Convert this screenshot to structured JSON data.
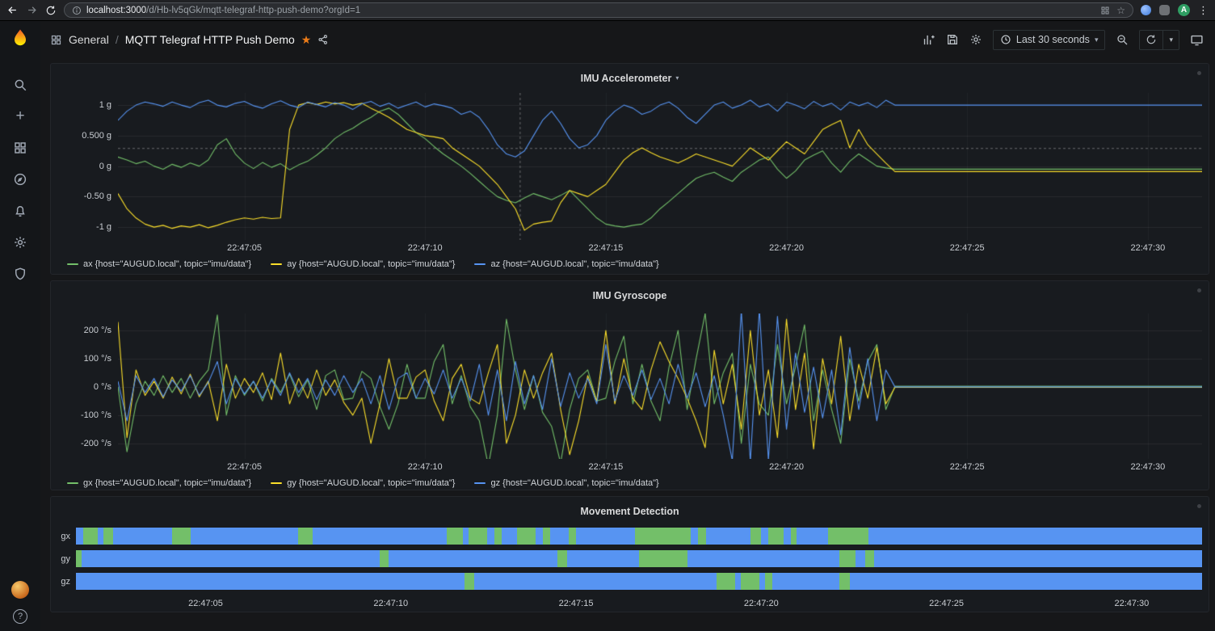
{
  "browser": {
    "url_domain": "localhost:3000",
    "url_path": "/d/Hb-lv5qGk/mqtt-telegraf-http-push-demo?orgId=1",
    "avatar_letter": "A"
  },
  "icons": {
    "star_filled": "★",
    "star_outline": "☆",
    "kebab": "⋮",
    "caret_down": "▾",
    "plus": "+",
    "question": "?"
  },
  "nav": {
    "folder": "General",
    "separator": "/",
    "title": "MQTT Telegraf HTTP Push Demo",
    "time_range": "Last 30 seconds"
  },
  "chart_data": {
    "accel": {
      "type": "line",
      "title": "IMU Accelerometer",
      "t0": 0,
      "dt": 0.25,
      "x_start": 0,
      "x_end": 30,
      "y_min": -1.21,
      "y_max": 1.2,
      "crosshair": {
        "t": 11.13,
        "v": 0.29
      },
      "y_ticks": [
        {
          "v": 1,
          "label": "1 g"
        },
        {
          "v": 0.5,
          "label": "0.500 g"
        },
        {
          "v": 0,
          "label": "0 g"
        },
        {
          "v": -0.5,
          "label": "-0.50 g"
        },
        {
          "v": -1,
          "label": "-1 g"
        }
      ],
      "x_ticks": [
        {
          "t": 3.5,
          "label": "22:47:05"
        },
        {
          "t": 8.5,
          "label": "22:47:10"
        },
        {
          "t": 13.5,
          "label": "22:47:15"
        },
        {
          "t": 18.5,
          "label": "22:47:20"
        },
        {
          "t": 23.5,
          "label": "22:47:25"
        },
        {
          "t": 28.5,
          "label": "22:47:30"
        }
      ],
      "series": [
        {
          "name": "ax",
          "color": "#73BF69",
          "legend": "ax {host=\"AUGUD.local\", topic=\"imu/data\"}",
          "values": [
            0.15,
            0.1,
            0.04,
            0.08,
            0,
            -0.05,
            0.03,
            -0.02,
            0.05,
            0,
            0.1,
            0.35,
            0.45,
            0.2,
            0.05,
            -0.04,
            0.06,
            -0.02,
            0.04,
            -0.06,
            0.02,
            0.08,
            0.18,
            0.3,
            0.45,
            0.55,
            0.62,
            0.72,
            0.8,
            0.9,
            0.95,
            0.85,
            0.7,
            0.55,
            0.45,
            0.32,
            0.2,
            0.1,
            0,
            -0.12,
            -0.25,
            -0.38,
            -0.5,
            -0.56,
            -0.6,
            -0.52,
            -0.45,
            -0.5,
            -0.55,
            -0.48,
            -0.4,
            -0.55,
            -0.7,
            -0.85,
            -0.95,
            -0.98,
            -1,
            -0.97,
            -0.95,
            -0.85,
            -0.7,
            -0.58,
            -0.45,
            -0.32,
            -0.2,
            -0.14,
            -0.1,
            -0.18,
            -0.25,
            -0.1,
            0,
            0.1,
            0.15,
            -0.05,
            -0.2,
            -0.08,
            0.1,
            0.18,
            0.25,
            0.05,
            -0.1,
            0.08,
            0.2,
            0.1,
            0,
            -0.03,
            -0.05
          ]
        },
        {
          "name": "ay",
          "color": "#FADE2A",
          "legend": "ay {host=\"AUGUD.local\", topic=\"imu/data\"}",
          "values": [
            -0.45,
            -0.7,
            -0.85,
            -0.95,
            -1,
            -0.97,
            -1.02,
            -0.98,
            -1,
            -0.96,
            -1.01,
            -0.97,
            -0.92,
            -0.88,
            -0.85,
            -0.87,
            -0.84,
            -0.86,
            -0.85,
            0.6,
            1,
            1.04,
            1.01,
            1.05,
            1.02,
            1.04,
            1,
            1.03,
            0.95,
            0.88,
            0.8,
            0.7,
            0.6,
            0.55,
            0.5,
            0.48,
            0.45,
            0.3,
            0.2,
            0.1,
            0,
            -0.15,
            -0.3,
            -0.5,
            -0.7,
            -1.05,
            -0.95,
            -0.92,
            -0.9,
            -0.6,
            -0.4,
            -0.45,
            -0.5,
            -0.4,
            -0.3,
            -0.1,
            0.1,
            0.22,
            0.3,
            0.22,
            0.15,
            0.1,
            0.05,
            0.12,
            0.2,
            0.15,
            0.1,
            0.05,
            0,
            0.15,
            0.3,
            0.2,
            0.1,
            0.25,
            0.4,
            0.3,
            0.2,
            0.4,
            0.6,
            0.68,
            0.75,
            0.3,
            0.6,
            0.35,
            0.2,
            0.05,
            -0.09
          ]
        },
        {
          "name": "az",
          "color": "#5794F2",
          "legend": "az {host=\"AUGUD.local\", topic=\"imu/data\"}",
          "values": [
            0.75,
            0.9,
            1,
            1.05,
            1.02,
            0.98,
            1.05,
            1,
            0.96,
            1.04,
            1.08,
            1,
            0.97,
            1.03,
            1.06,
            0.99,
            0.95,
            1.02,
            1.07,
            1,
            0.96,
            1.05,
            1.01,
            0.97,
            1.04,
            1,
            0.93,
            1.02,
            1.06,
            0.98,
            1.03,
            0.95,
            1,
            1.05,
            0.97,
            1.02,
            0.99,
            0.95,
            0.85,
            0.9,
            0.8,
            0.6,
            0.35,
            0.2,
            0.15,
            0.25,
            0.5,
            0.75,
            0.9,
            0.7,
            0.45,
            0.3,
            0.35,
            0.5,
            0.75,
            0.9,
            1,
            0.95,
            0.85,
            0.9,
            1,
            1.05,
            0.95,
            0.8,
            0.7,
            0.85,
            1,
            1.05,
            0.95,
            1,
            1.08,
            0.97,
            1.02,
            0.9,
            1.05,
            1,
            0.94,
            1.06,
            0.98,
            1.03,
            0.92,
            1.05,
            0.99,
            1.04,
            0.96,
            1.08,
            1
          ]
        }
      ]
    },
    "gyro": {
      "type": "line",
      "title": "IMU Gyroscope",
      "t0": 0,
      "dt": 0.25,
      "x_start": 0,
      "x_end": 30,
      "y_min": -255,
      "y_max": 260,
      "y_ticks": [
        {
          "v": 200,
          "label": "200 °/s"
        },
        {
          "v": 100,
          "label": "100 °/s"
        },
        {
          "v": 0,
          "label": "0 °/s"
        },
        {
          "v": -100,
          "label": "-100 °/s"
        },
        {
          "v": -200,
          "label": "-200 °/s"
        }
      ],
      "x_ticks": [
        {
          "t": 3.5,
          "label": "22:47:05"
        },
        {
          "t": 8.5,
          "label": "22:47:10"
        },
        {
          "t": 13.5,
          "label": "22:47:15"
        },
        {
          "t": 18.5,
          "label": "22:47:20"
        },
        {
          "t": 23.5,
          "label": "22:47:25"
        },
        {
          "t": 28.5,
          "label": "22:47:30"
        }
      ],
      "series": [
        {
          "name": "gx",
          "color": "#73BF69",
          "legend": "gx {host=\"AUGUD.local\", topic=\"imu/data\"}",
          "values": [
            0,
            -230,
            -60,
            20,
            -30,
            40,
            -20,
            30,
            -40,
            20,
            60,
            255,
            -100,
            40,
            -30,
            20,
            -50,
            30,
            -20,
            45,
            -35,
            25,
            -80,
            40,
            60,
            -45,
            -40,
            55,
            30,
            -70,
            -150,
            -60,
            80,
            -40,
            -40,
            90,
            150,
            -60,
            40,
            -70,
            -120,
            -280,
            -100,
            240,
            60,
            -80,
            40,
            -90,
            -140,
            -270,
            -80,
            30,
            60,
            -50,
            -40,
            90,
            180,
            -60,
            80,
            -50,
            -120,
            70,
            200,
            -80,
            100,
            260,
            -60,
            50,
            120,
            -200,
            80,
            -60,
            -100,
            150,
            -60,
            70,
            220,
            -120,
            60,
            -80,
            -200,
            100,
            -50,
            90,
            150,
            -80,
            2
          ]
        },
        {
          "name": "gy",
          "color": "#FADE2A",
          "legend": "gy {host=\"AUGUD.local\", topic=\"imu/data\"}",
          "values": [
            230,
            -180,
            60,
            -30,
            20,
            -40,
            35,
            -25,
            45,
            -35,
            20,
            -120,
            80,
            -40,
            30,
            -20,
            50,
            -45,
            120,
            -60,
            30,
            -40,
            60,
            -30,
            25,
            -55,
            -100,
            -40,
            -200,
            -60,
            100,
            -40,
            -40,
            35,
            60,
            -50,
            -120,
            30,
            80,
            -40,
            -60,
            50,
            150,
            -200,
            -100,
            60,
            -40,
            50,
            120,
            -80,
            -240,
            -120,
            40,
            -50,
            200,
            -60,
            100,
            -40,
            -80,
            60,
            160,
            90,
            30,
            -40,
            -120,
            -215,
            130,
            -60,
            80,
            -150,
            200,
            -100,
            60,
            -180,
            240,
            -80,
            120,
            -220,
            100,
            -60,
            180,
            -120,
            80,
            -40,
            140,
            -60,
            -2
          ]
        },
        {
          "name": "gz",
          "color": "#5794F2",
          "legend": "gz {host=\"AUGUD.local\", topic=\"imu/data\"}",
          "values": [
            20,
            -120,
            40,
            -20,
            30,
            -35,
            25,
            -15,
            40,
            -30,
            15,
            90,
            -60,
            30,
            -25,
            20,
            -40,
            25,
            -30,
            50,
            -20,
            30,
            -45,
            25,
            -30,
            40,
            -20,
            30,
            -60,
            40,
            -80,
            30,
            50,
            -40,
            30,
            -25,
            60,
            -40,
            30,
            -50,
            80,
            -100,
            60,
            -120,
            90,
            -60,
            40,
            -80,
            100,
            -70,
            50,
            -40,
            30,
            -60,
            150,
            -50,
            40,
            -30,
            60,
            -45,
            30,
            -60,
            80,
            -40,
            50,
            -70,
            40,
            -100,
            -260,
            270,
            -265,
            275,
            -260,
            250,
            -150,
            120,
            -90,
            70,
            -110,
            60,
            -170,
            140,
            -80,
            100,
            -120,
            60,
            0
          ]
        }
      ]
    },
    "movement": {
      "type": "state-timeline",
      "title": "Movement Detection",
      "x_start": 0,
      "x_end": 30.4,
      "colors": {
        "idle": "#5794F2",
        "active": "#73BF69"
      },
      "x_ticks": [
        {
          "t": 3.5,
          "label": "22:47:05"
        },
        {
          "t": 8.5,
          "label": "22:47:10"
        },
        {
          "t": 13.5,
          "label": "22:47:15"
        },
        {
          "t": 18.5,
          "label": "22:47:20"
        },
        {
          "t": 23.5,
          "label": "22:47:25"
        },
        {
          "t": 28.5,
          "label": "22:47:30"
        }
      ],
      "rows": [
        {
          "label": "gx",
          "active": [
            [
              0.2,
              0.6
            ],
            [
              0.75,
              1.0
            ],
            [
              2.6,
              3.1
            ],
            [
              6.0,
              6.4
            ],
            [
              10.0,
              10.45
            ],
            [
              10.6,
              11.1
            ],
            [
              11.3,
              11.5
            ],
            [
              11.9,
              12.4
            ],
            [
              12.6,
              12.8
            ],
            [
              13.3,
              13.5
            ],
            [
              15.1,
              16.6
            ],
            [
              16.8,
              17.0
            ],
            [
              18.2,
              18.5
            ],
            [
              18.7,
              19.1
            ],
            [
              19.3,
              19.45
            ],
            [
              20.3,
              21.4
            ]
          ]
        },
        {
          "label": "gy",
          "active": [
            [
              0.0,
              0.15
            ],
            [
              8.2,
              8.45
            ],
            [
              13.0,
              13.25
            ],
            [
              15.2,
              16.5
            ],
            [
              20.6,
              21.05
            ],
            [
              21.3,
              21.55
            ]
          ]
        },
        {
          "label": "gz",
          "active": [
            [
              10.5,
              10.75
            ],
            [
              17.3,
              17.8
            ],
            [
              17.95,
              18.45
            ],
            [
              18.6,
              18.8
            ],
            [
              20.6,
              20.9
            ]
          ]
        }
      ]
    }
  }
}
